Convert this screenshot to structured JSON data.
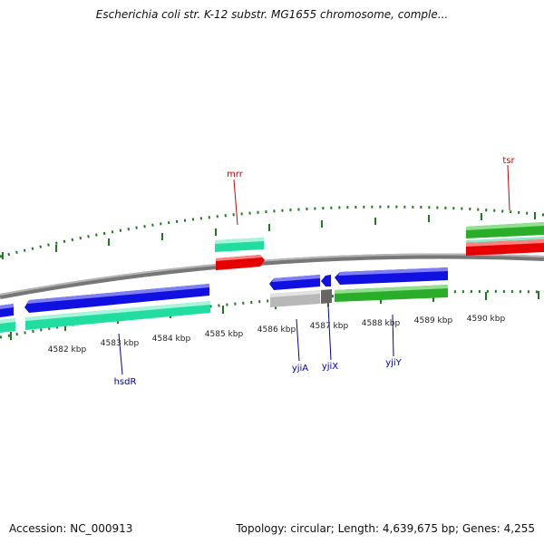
{
  "title": "Escherichia coli str. K-12 substr. MG1655 chromosome, comple...",
  "footer": {
    "accession": "Accession: NC_000913",
    "topology": "Topology: circular; Length: 4,639,675 bp; Genes: 4,255"
  },
  "colors": {
    "backbone": "#8c8c8c",
    "tick": "#1f7a1f",
    "label_forward": "#cc0000",
    "label_reverse": "#0000aa"
  },
  "kbp_ticks": [
    "4582 kbp",
    "4583 kbp",
    "4584 kbp",
    "4585 kbp",
    "4586 kbp",
    "4587 kbp",
    "4588 kbp",
    "4589 kbp",
    "4590 kbp"
  ],
  "genes": [
    {
      "name": "mrr",
      "strand": "forward"
    },
    {
      "name": "tsr",
      "strand": "forward"
    },
    {
      "name": "hsdR",
      "strand": "reverse"
    },
    {
      "name": "yjiA",
      "strand": "reverse"
    },
    {
      "name": "yjiX",
      "strand": "reverse"
    },
    {
      "name": "yjiY",
      "strand": "reverse"
    }
  ]
}
